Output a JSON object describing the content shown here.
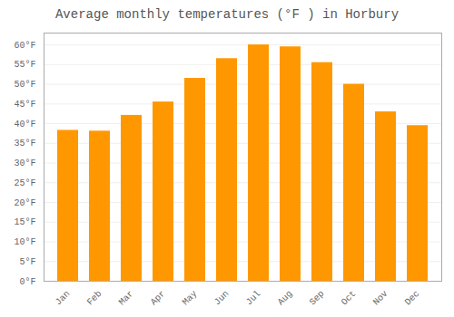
{
  "chart_data": {
    "type": "bar",
    "title": "Average monthly temperatures (°F ) in Horbury",
    "categories": [
      "Jan",
      "Feb",
      "Mar",
      "Apr",
      "May",
      "Jun",
      "Jul",
      "Aug",
      "Sep",
      "Oct",
      "Nov",
      "Dec"
    ],
    "values": [
      38.3,
      38.1,
      42.1,
      45.5,
      51.5,
      56.5,
      60.0,
      59.5,
      55.5,
      50.0,
      43.0,
      39.5
    ],
    "color": "#FF9800",
    "ylim": [
      0,
      63
    ],
    "yticks": [
      {
        "value": 0,
        "label": "0°F"
      },
      {
        "value": 5,
        "label": "5°F"
      },
      {
        "value": 10,
        "label": "10°F"
      },
      {
        "value": 15,
        "label": "15°F"
      },
      {
        "value": 20,
        "label": "20°F"
      },
      {
        "value": 25,
        "label": "25°F"
      },
      {
        "value": 30,
        "label": "30°F"
      },
      {
        "value": 35,
        "label": "35°F"
      },
      {
        "value": 40,
        "label": "40°F"
      },
      {
        "value": 45,
        "label": "45°F"
      },
      {
        "value": 50,
        "label": "50°F"
      },
      {
        "value": 55,
        "label": "55°F"
      },
      {
        "value": 60,
        "label": "60°F"
      }
    ],
    "grid": true
  }
}
